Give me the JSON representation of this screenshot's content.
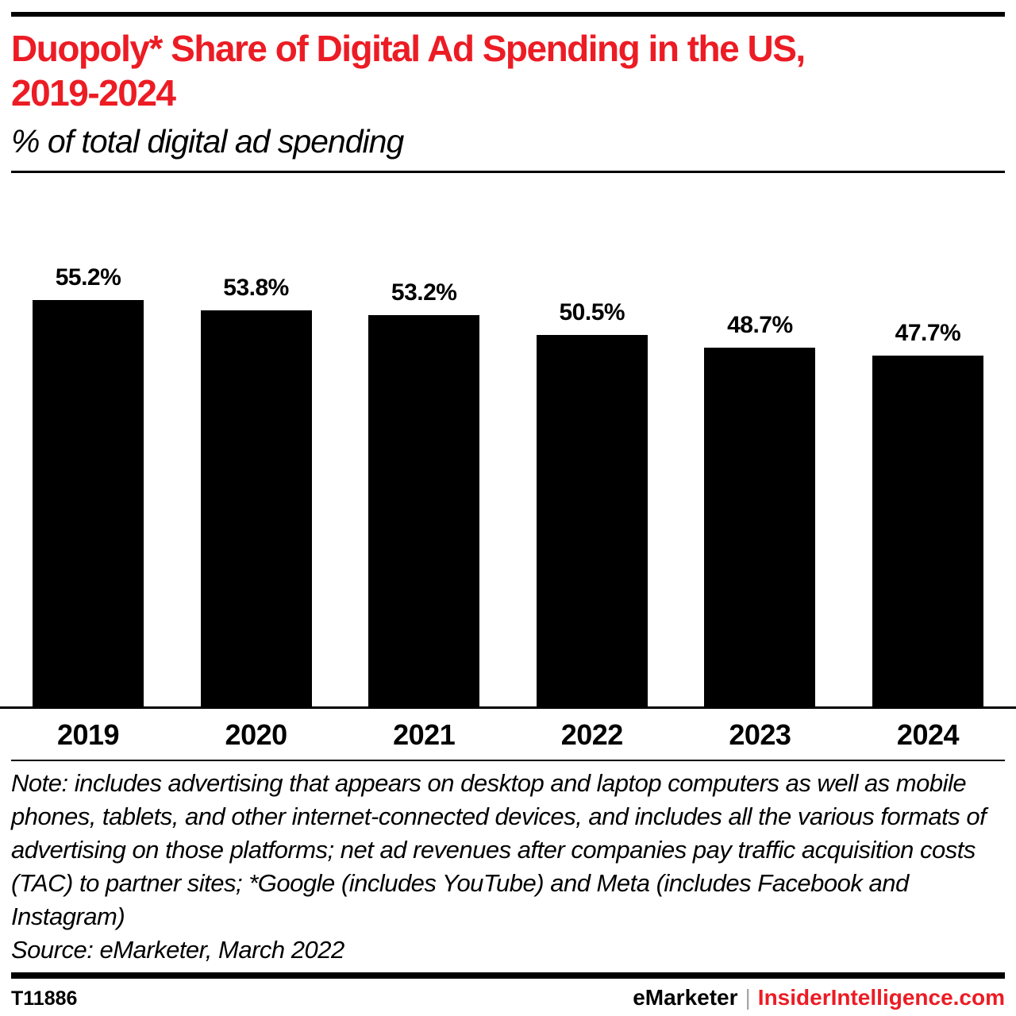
{
  "header": {
    "title_line1": "Duopoly* Share of Digital Ad Spending in the US,",
    "title_line2": "2019-2024",
    "subtitle": "% of total digital ad spending",
    "title_color": "#ec1c24"
  },
  "chart_data": {
    "type": "bar",
    "title": "Duopoly* Share of Digital Ad Spending in the US, 2019-2024",
    "subtitle": "% of total digital ad spending",
    "categories": [
      "2019",
      "2020",
      "2021",
      "2022",
      "2023",
      "2024"
    ],
    "values": [
      55.2,
      53.8,
      53.2,
      50.5,
      48.7,
      47.7
    ],
    "value_labels": [
      "55.2%",
      "53.8%",
      "53.2%",
      "50.5%",
      "48.7%",
      "47.7%"
    ],
    "bar_color": "#000000",
    "ylabel": "% of total digital ad spending",
    "xlabel": "",
    "ylim": [
      0,
      60
    ],
    "grid": false,
    "legend": false
  },
  "note": {
    "text": "Note: includes advertising that appears on desktop and laptop computers as well as mobile phones, tablets, and other internet-connected devices, and includes all the various formats of advertising on those platforms; net ad revenues after companies pay traffic acquisition costs (TAC) to partner sites; *Google (includes YouTube) and Meta (includes Facebook and Instagram)",
    "source": "Source: eMarketer, March 2022"
  },
  "footer": {
    "chart_id": "T11886",
    "brand": "eMarketer",
    "separator": "|",
    "site": "InsiderIntelligence.com",
    "site_color": "#ec1c24"
  }
}
